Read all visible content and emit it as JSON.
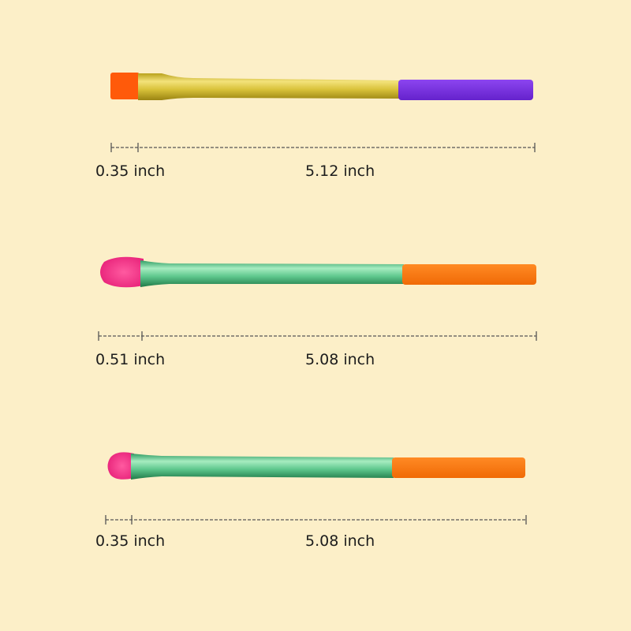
{
  "colors": {
    "background": "#fcefc8",
    "gold": "#d9c23a",
    "purple": "#7a2fe0",
    "orange": "#ff7a12",
    "green": "#5fc88e",
    "pink": "#ff3e8c",
    "bristle_orange": "#ff5a0a"
  },
  "brushes": [
    {
      "head_length": "0.35 inch",
      "handle_length": "5.12 inch"
    },
    {
      "head_length": "0.51 inch",
      "handle_length": "5.08 inch"
    },
    {
      "head_length": "0.35 inch",
      "handle_length": "5.08 inch"
    }
  ]
}
